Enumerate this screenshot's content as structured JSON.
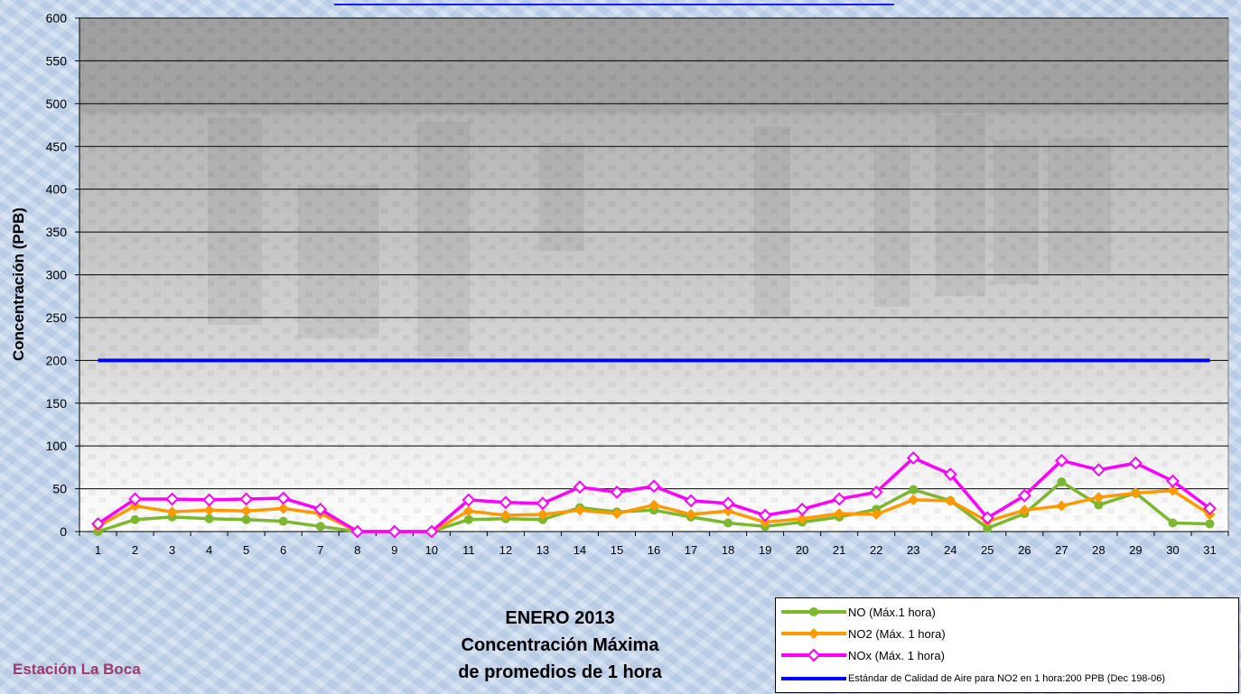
{
  "chart_data": {
    "type": "line",
    "title": "ENERO 2013",
    "subtitle_lines": [
      "Concentración Máxima",
      "de promedios de 1 hora"
    ],
    "ylabel": "Concentración  (PPB)",
    "xlabel": "",
    "ylim": [
      0,
      600
    ],
    "ytick_step": 50,
    "yticks": [
      "0",
      "50",
      "100",
      "150",
      "200",
      "250",
      "300",
      "350",
      "400",
      "450",
      "500",
      "550",
      "600"
    ],
    "categories": [
      "1",
      "2",
      "3",
      "4",
      "5",
      "6",
      "7",
      "8",
      "9",
      "10",
      "11",
      "12",
      "13",
      "14",
      "15",
      "16",
      "17",
      "18",
      "19",
      "20",
      "21",
      "22",
      "23",
      "24",
      "25",
      "26",
      "27",
      "28",
      "29",
      "30",
      "31"
    ],
    "grid": "horizontal",
    "legend_position": "bottom-right",
    "series": [
      {
        "name": "NO (Máx.1 hora)",
        "color": "#7cb82f",
        "marker": "circle",
        "values": [
          0,
          14,
          17,
          15,
          14,
          12,
          6,
          0,
          0,
          0,
          14,
          15,
          14,
          28,
          23,
          25,
          17,
          10,
          6,
          11,
          17,
          26,
          49,
          36,
          4,
          21,
          58,
          31,
          45,
          10,
          9
        ]
      },
      {
        "name": "NO2 (Máx. 1 hora)",
        "color": "#ff9900",
        "marker": "diamond",
        "values": [
          6,
          30,
          23,
          25,
          24,
          27,
          21,
          0,
          0,
          0,
          24,
          19,
          20,
          25,
          21,
          31,
          20,
          24,
          11,
          15,
          21,
          20,
          37,
          36,
          12,
          25,
          30,
          40,
          45,
          48,
          20
        ]
      },
      {
        "name": "NOx (Máx. 1 hora)",
        "color": "#ff00ff",
        "marker": "diamond-open",
        "values": [
          9,
          38,
          38,
          37,
          38,
          39,
          26,
          0,
          0,
          0,
          37,
          34,
          33,
          52,
          46,
          53,
          36,
          33,
          19,
          26,
          38,
          46,
          86,
          67,
          16,
          42,
          83,
          72,
          80,
          59,
          27
        ]
      },
      {
        "name": "Estándar de Calidad de Aire para NO2 en 1 hora:200 PPB (Dec 198-06)",
        "color": "#0000ff",
        "marker": "none",
        "values": [
          200,
          200,
          200,
          200,
          200,
          200,
          200,
          200,
          200,
          200,
          200,
          200,
          200,
          200,
          200,
          200,
          200,
          200,
          200,
          200,
          200,
          200,
          200,
          200,
          200,
          200,
          200,
          200,
          200,
          200,
          200
        ]
      }
    ]
  },
  "station": "Estación La Boca"
}
